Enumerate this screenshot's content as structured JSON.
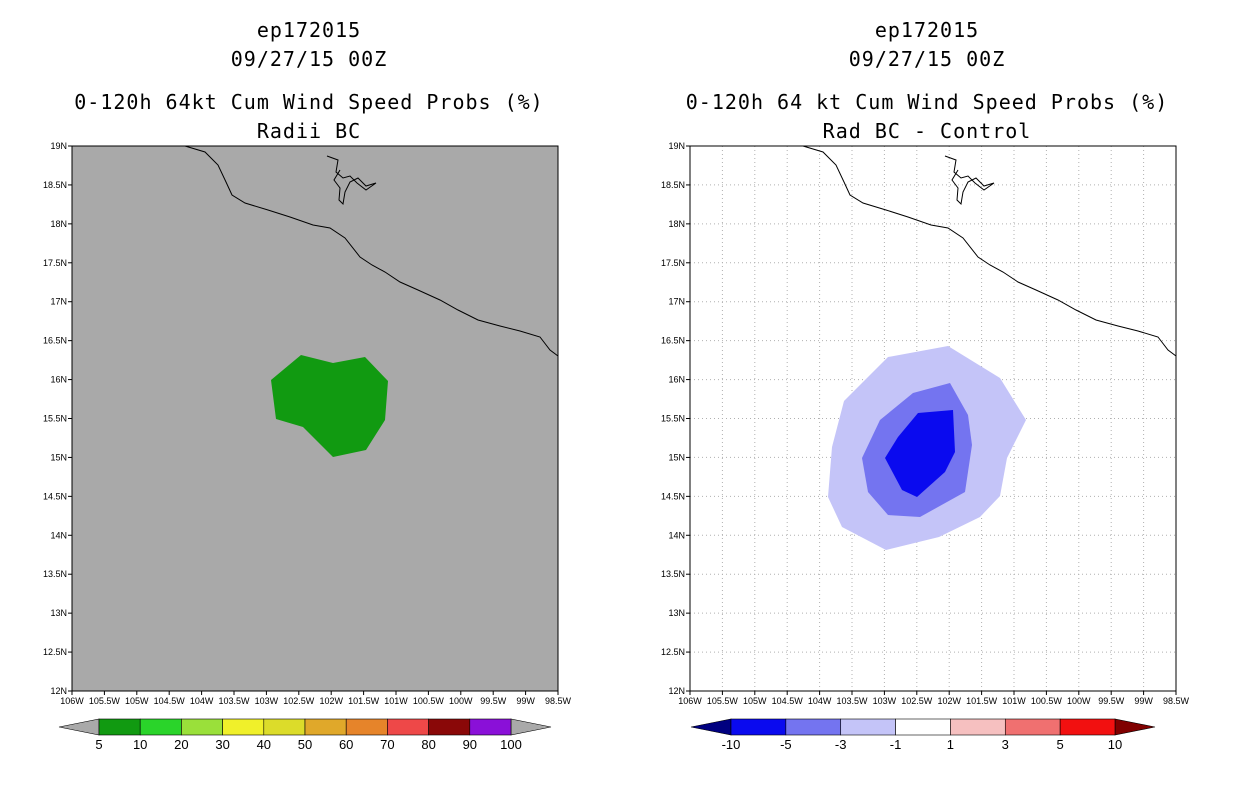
{
  "left_panel": {
    "title_line1": "ep172015",
    "title_line2": "09/27/15 00Z",
    "title_line3": "0-120h 64kt Cum Wind Speed Probs (%)",
    "title_line4": "Radii BC",
    "background_color": "#a9a9a9",
    "contour_color": "#119a11"
  },
  "right_panel": {
    "title_line1": "ep172015",
    "title_line2": "09/27/15 00Z",
    "title_line3": "0-120h 64 kt Cum Wind Speed Probs (%)",
    "title_line4": "Rad BC - Control",
    "background_color": "#ffffff",
    "contour_colors": {
      "minus1_to_minus3": "#c4c4f8",
      "minus3_to_minus5": "#7474f0",
      "minus5_to_minus10": "#0a0aef"
    }
  },
  "lat_labels": [
    "19N",
    "18.5N",
    "18N",
    "17.5N",
    "17N",
    "16.5N",
    "16N",
    "15.5N",
    "15N",
    "14.5N",
    "14N",
    "13.5N",
    "13N",
    "12.5N",
    "12N"
  ],
  "lon_labels": [
    "106W",
    "105.5W",
    "105W",
    "104.5W",
    "104W",
    "103.5W",
    "103W",
    "102.5W",
    "102W",
    "101.5W",
    "101W",
    "100.5W",
    "100W",
    "99.5W",
    "99W",
    "98.5W"
  ],
  "left_colorbar": {
    "labels": [
      "5",
      "10",
      "20",
      "30",
      "40",
      "50",
      "60",
      "70",
      "80",
      "90",
      "100"
    ],
    "colors": [
      "#119a11",
      "#2ad42a",
      "#9ae03a",
      "#f0f02a",
      "#dcdc2a",
      "#e0a82a",
      "#e6842a",
      "#ee4848",
      "#8a0808",
      "#8a10d8"
    ],
    "end_color": "#a9a9a9"
  },
  "right_colorbar": {
    "labels": [
      "-10",
      "-5",
      "-3",
      "-1",
      "1",
      "3",
      "5",
      "10"
    ],
    "colors": [
      "#0a0aef",
      "#7474f0",
      "#c4c4f8",
      "#ffffff",
      "#f6c0c0",
      "#f07070",
      "#f21010"
    ],
    "left_end_color": "#000080",
    "right_end_color": "#800000"
  }
}
